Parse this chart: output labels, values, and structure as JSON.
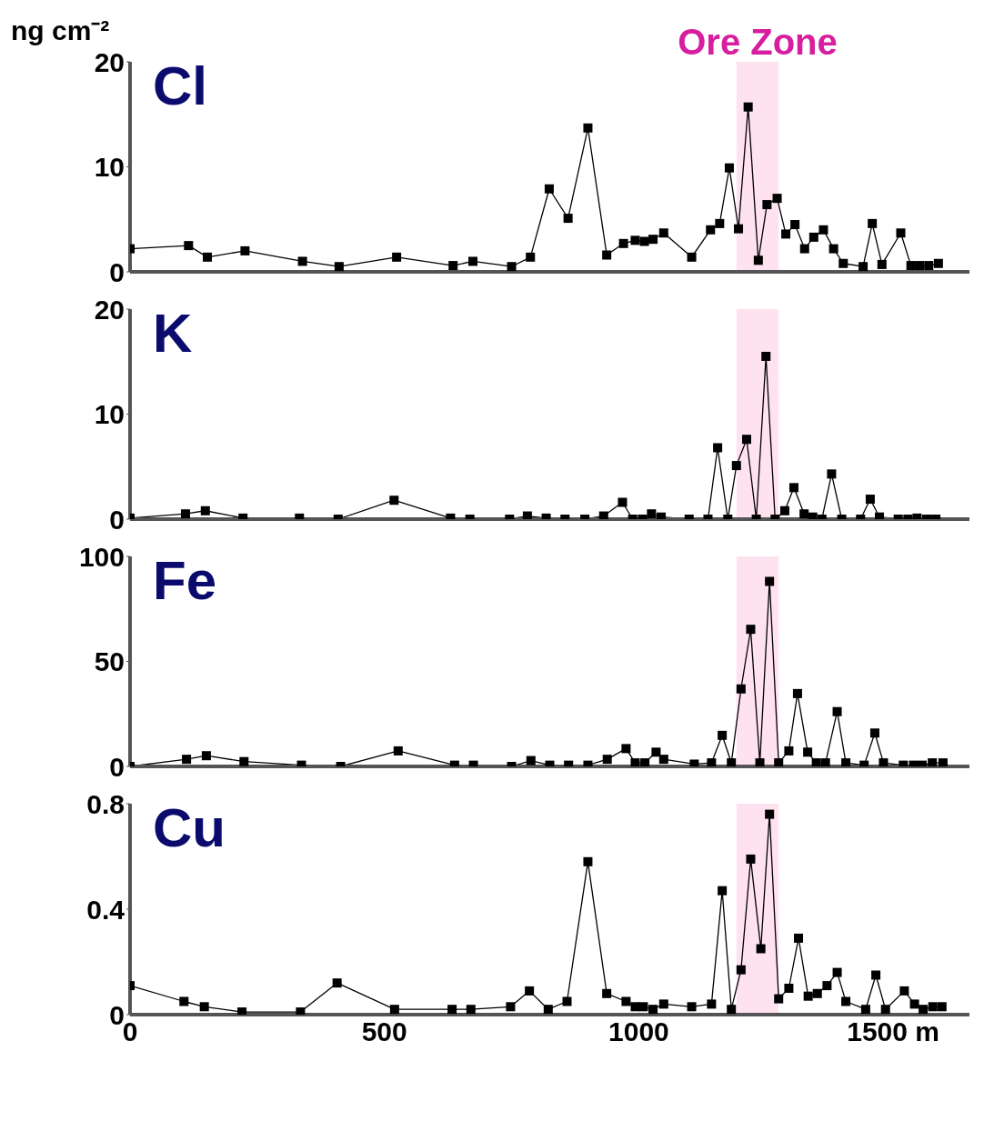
{
  "chart_data": [
    {
      "type": "line",
      "title": "Cl",
      "ylabel": "ng cm⁻²",
      "color": "#000000",
      "marker": "square",
      "line_style": "solid",
      "grid": false,
      "tick_labels": "y",
      "xlim": [
        0,
        1650
      ],
      "xticks": [
        0,
        500,
        1000,
        1500
      ],
      "ylim": [
        0,
        20
      ],
      "yticks": [
        0,
        10,
        20
      ],
      "bands": [
        {
          "axis": "x",
          "from": 1192,
          "to": 1275,
          "label": "Ore Zone",
          "color": "#ffd6ea"
        }
      ],
      "x": [
        0,
        115,
        152,
        226,
        339,
        411,
        524,
        635,
        674,
        750,
        787,
        824,
        861,
        900,
        937,
        970,
        993,
        1011,
        1028,
        1049,
        1104,
        1141,
        1159,
        1178,
        1196,
        1215,
        1235,
        1252,
        1272,
        1289,
        1307,
        1326,
        1344,
        1363,
        1383,
        1402,
        1441,
        1459,
        1478,
        1515,
        1535,
        1552,
        1570,
        1589
      ],
      "values": [
        2.2,
        2.5,
        1.4,
        2.0,
        1.0,
        0.5,
        1.4,
        0.6,
        1.0,
        0.5,
        1.4,
        7.9,
        5.1,
        13.7,
        1.6,
        2.7,
        3.0,
        2.9,
        3.1,
        3.7,
        1.4,
        4.0,
        4.6,
        9.9,
        4.1,
        15.7,
        1.1,
        6.4,
        7.0,
        3.6,
        4.5,
        2.2,
        3.3,
        4.0,
        2.2,
        0.8,
        0.5,
        4.6,
        0.7,
        3.7,
        0.6,
        0.6,
        0.6,
        0.8
      ]
    },
    {
      "type": "line",
      "title": "K",
      "color": "#000000",
      "marker": "square",
      "line_style": "solid",
      "grid": false,
      "tick_labels": "y",
      "xlim": [
        0,
        1650
      ],
      "xticks": [
        0,
        500,
        1000,
        1500
      ],
      "ylim": [
        0,
        20
      ],
      "yticks": [
        0,
        10,
        20
      ],
      "bands": [
        {
          "axis": "x",
          "from": 1192,
          "to": 1275,
          "color": "#ffd6ea"
        }
      ],
      "x": [
        0,
        109,
        148,
        222,
        333,
        409,
        519,
        630,
        668,
        746,
        781,
        818,
        855,
        894,
        931,
        968,
        988,
        1007,
        1025,
        1044,
        1099,
        1136,
        1155,
        1175,
        1192,
        1212,
        1231,
        1250,
        1268,
        1287,
        1305,
        1325,
        1342,
        1360,
        1379,
        1399,
        1436,
        1455,
        1473,
        1510,
        1529,
        1547,
        1566,
        1584
      ],
      "values": [
        0.1,
        0.5,
        0.8,
        0.1,
        0.1,
        0,
        1.8,
        0.1,
        0,
        0,
        0.3,
        0.1,
        0,
        0,
        0.3,
        1.6,
        0,
        0,
        0.5,
        0.2,
        0,
        0,
        6.8,
        0,
        5.1,
        7.6,
        0,
        15.5,
        0,
        0.8,
        3.0,
        0.5,
        0.2,
        0,
        4.3,
        0,
        0,
        1.9,
        0.2,
        0,
        0,
        0.1,
        0,
        0
      ]
    },
    {
      "type": "line",
      "title": "Fe",
      "color": "#000000",
      "marker": "square",
      "line_style": "solid",
      "grid": false,
      "tick_labels": "y",
      "xlim": [
        0,
        1650
      ],
      "xticks": [
        0,
        500,
        1000,
        1500
      ],
      "ylim": [
        0,
        100
      ],
      "yticks": [
        0,
        50,
        100
      ],
      "bands": [
        {
          "axis": "x",
          "from": 1192,
          "to": 1275,
          "color": "#ffd6ea"
        }
      ],
      "x": [
        0,
        111,
        150,
        224,
        337,
        414,
        527,
        638,
        675,
        750,
        788,
        825,
        862,
        900,
        938,
        975,
        993,
        1012,
        1034,
        1049,
        1109,
        1143,
        1164,
        1182,
        1201,
        1220,
        1238,
        1257,
        1275,
        1295,
        1312,
        1332,
        1349,
        1367,
        1390,
        1407,
        1443,
        1464,
        1481,
        1520,
        1540,
        1557,
        1577,
        1598
      ],
      "values": [
        0,
        3.4,
        5.1,
        2.3,
        0.6,
        0,
        7.4,
        0.6,
        0.6,
        0,
        2.8,
        0.6,
        0.6,
        0.6,
        3.4,
        8.5,
        1.7,
        1.7,
        6.8,
        3.4,
        1.1,
        1.7,
        14.8,
        1.7,
        36.9,
        65.3,
        1.7,
        88.1,
        1.7,
        7.4,
        34.7,
        6.8,
        1.7,
        1.7,
        26.1,
        1.7,
        0.6,
        15.9,
        1.7,
        0.6,
        0.6,
        0.6,
        1.7,
        1.7
      ]
    },
    {
      "type": "line",
      "title": "Cu",
      "color": "#000000",
      "marker": "square",
      "line_style": "solid",
      "grid": false,
      "xlim": [
        0,
        1650
      ],
      "xticks": [
        0,
        500,
        1000,
        {
          "value": 1500,
          "label": "1500 m"
        }
      ],
      "ylim": [
        0,
        0.8
      ],
      "yticks": [
        0,
        0.4,
        0.8
      ],
      "bands": [
        {
          "axis": "x",
          "from": 1192,
          "to": 1275,
          "color": "#ffd6ea"
        }
      ],
      "x": [
        0,
        106,
        146,
        220,
        335,
        407,
        520,
        633,
        670,
        748,
        785,
        822,
        859,
        900,
        937,
        975,
        993,
        1009,
        1028,
        1049,
        1104,
        1143,
        1164,
        1182,
        1201,
        1220,
        1240,
        1257,
        1275,
        1295,
        1314,
        1333,
        1351,
        1370,
        1390,
        1407,
        1446,
        1466,
        1485,
        1522,
        1542,
        1559,
        1578,
        1596
      ],
      "values": [
        0.11,
        0.05,
        0.03,
        0.01,
        0.01,
        0.12,
        0.02,
        0.02,
        0.02,
        0.03,
        0.09,
        0.02,
        0.05,
        0.58,
        0.08,
        0.05,
        0.03,
        0.03,
        0.02,
        0.04,
        0.03,
        0.04,
        0.47,
        0.02,
        0.17,
        0.59,
        0.25,
        0.76,
        0.06,
        0.1,
        0.29,
        0.07,
        0.08,
        0.11,
        0.16,
        0.05,
        0.02,
        0.15,
        0.02,
        0.09,
        0.04,
        0.02,
        0.03,
        0.03
      ]
    }
  ]
}
